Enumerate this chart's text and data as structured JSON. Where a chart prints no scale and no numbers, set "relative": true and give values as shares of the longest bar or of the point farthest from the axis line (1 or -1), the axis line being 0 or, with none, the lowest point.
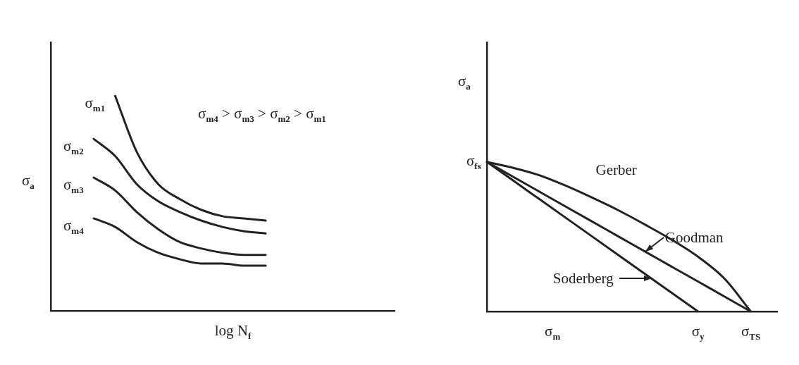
{
  "chart_data": [
    {
      "type": "line",
      "relative": true,
      "tick_labels": false,
      "xlabel": "log N$_{f}$",
      "ylabel": "σ$_{a}$",
      "annotations": [
        "σ$_{m4}$ > σ$_{m3}$ > σ$_{m2}$ > σ$_{m1}$"
      ],
      "categories": [
        null,
        null,
        null,
        null,
        null,
        null,
        null,
        null,
        null,
        null,
        null,
        null,
        null,
        null,
        null,
        null,
        null
      ],
      "series": [
        {
          "name": "σ$_{m1}$",
          "color": "#222222",
          "values": [
            null,
            null,
            null,
            1,
            0.74,
            0.59,
            0.52,
            0.47,
            0.44,
            0.43,
            0.42,
            null,
            null,
            null,
            null,
            null,
            null
          ]
        },
        {
          "name": "σ$_{m2}$",
          "color": "#222222",
          "values": [
            null,
            null,
            0.8,
            0.72,
            0.59,
            0.51,
            0.46,
            0.42,
            0.39,
            0.37,
            0.36,
            null,
            null,
            null,
            null,
            null,
            null
          ]
        },
        {
          "name": "σ$_{m3}$",
          "color": "#222222",
          "values": [
            null,
            null,
            0.62,
            0.56,
            0.46,
            0.38,
            0.32,
            0.29,
            0.27,
            0.26,
            0.26,
            null,
            null,
            null,
            null,
            null,
            null
          ]
        },
        {
          "name": "σ$_{m4}$",
          "color": "#222222",
          "values": [
            null,
            null,
            0.43,
            0.39,
            0.32,
            0.27,
            0.24,
            0.22,
            0.22,
            0.21,
            0.21,
            null,
            null,
            null,
            null,
            null,
            null
          ]
        }
      ]
    },
    {
      "type": "line",
      "relative": true,
      "tick_labels": "x",
      "xlabel": "σ$_{m}$",
      "ylabel": "σ$_{a}$",
      "categories": [
        null,
        null,
        null,
        null,
        null,
        null,
        null,
        null,
        "σ$_{y}$",
        null,
        "σ$_{TS}$",
        null
      ],
      "annotations": [
        "σ$_{fs}$"
      ],
      "series": [
        {
          "name": "Gerber",
          "color": "#222222",
          "values": [
            1,
            0.96,
            0.91,
            0.84,
            0.76,
            0.675,
            0.58,
            0.48,
            0.366,
            0.22,
            0,
            null
          ]
        },
        {
          "name": "Goodman",
          "color": "#222222",
          "values": [
            1,
            0.9,
            0.8,
            0.7,
            0.6,
            0.5,
            0.4,
            0.3,
            0.2,
            0.1,
            0,
            null
          ]
        },
        {
          "name": "Soderberg",
          "color": "#222222",
          "values": [
            1,
            0.875,
            0.75,
            0.625,
            0.5,
            0.375,
            0.25,
            0.125,
            0,
            null,
            null,
            null
          ]
        }
      ]
    }
  ]
}
